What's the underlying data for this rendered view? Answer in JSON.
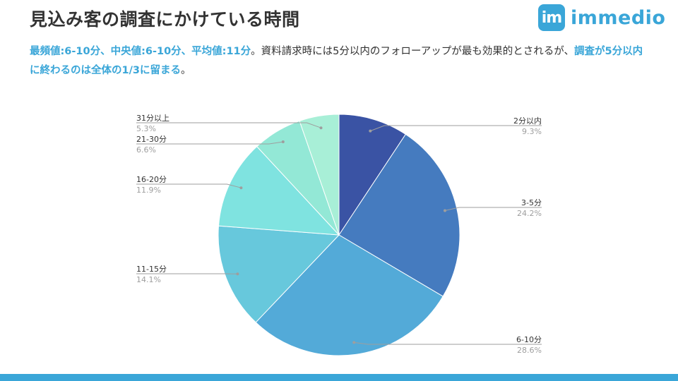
{
  "header": {
    "title": "見込み客の調査にかけている時間",
    "logo": {
      "mark": "im",
      "text": "immedio",
      "color": "#3aa6d8"
    }
  },
  "summary": {
    "hl1": "最頻値:6-10分、中央値:6-10分、平均値:11分",
    "text1": "。資料請求時には5分以内のフォローアップが最も効果的とされるが、",
    "hl2": "調査が5分以内に終わるのは全体の1/3に留まる",
    "text2": "。"
  },
  "chart_data": {
    "type": "pie",
    "start_angle_deg": 0,
    "direction": "clockwise",
    "slices": [
      {
        "label": "2分以内",
        "value": 9.3,
        "display": "9.3%",
        "color": "#3a53a4"
      },
      {
        "label": "3-5分",
        "value": 24.2,
        "display": "24.2%",
        "color": "#457bbf"
      },
      {
        "label": "6-10分",
        "value": 28.6,
        "display": "28.6%",
        "color": "#53aad8"
      },
      {
        "label": "11-15分",
        "value": 14.1,
        "display": "14.1%",
        "color": "#67c8dc"
      },
      {
        "label": "16-20分",
        "value": 11.9,
        "display": "11.9%",
        "color": "#7fe3e0"
      },
      {
        "label": "21-30分",
        "value": 6.6,
        "display": "6.6%",
        "color": "#93e8d6"
      },
      {
        "label": "31分以上",
        "value": 5.3,
        "display": "5.3%",
        "color": "#a8efd7"
      }
    ]
  },
  "colors": {
    "accent": "#3aa6d8",
    "text": "#333333",
    "muted": "#9e9e9e",
    "leader": "#9e9e9e"
  }
}
